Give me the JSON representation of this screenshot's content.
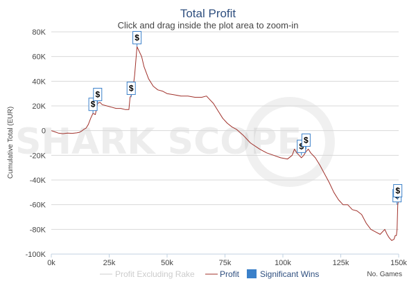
{
  "chart_data": {
    "type": "line",
    "title": "Total Profit",
    "subtitle": "Click and drag inside the plot area to zoom-in",
    "xlabel": "No. Games",
    "ylabel": "Cumulative Total (EUR)",
    "xlim": [
      0,
      150000
    ],
    "ylim": [
      -100000,
      80000
    ],
    "x_ticks": [
      0,
      25000,
      50000,
      75000,
      100000,
      125000,
      150000
    ],
    "x_tick_labels": [
      "0k",
      "25k",
      "50k",
      "75k",
      "100k",
      "125k",
      "150k"
    ],
    "y_ticks": [
      80000,
      60000,
      40000,
      20000,
      0,
      -20000,
      -40000,
      -60000,
      -80000,
      -100000
    ],
    "y_tick_labels": [
      "80K",
      "60K",
      "40K",
      "20K",
      "0",
      "-20K",
      "-40K",
      "-60K",
      "-80K",
      "-100K"
    ],
    "grid": true,
    "legend_position": "bottom",
    "watermark": "SHARK SCOPE",
    "series": [
      {
        "name": "Profit Excluding Rake",
        "color": "#cccccc",
        "visible": false,
        "x": [],
        "y": []
      },
      {
        "name": "Profit",
        "color": "#a0302a",
        "visible": true,
        "x": [
          0,
          1500,
          3000,
          5000,
          7000,
          9000,
          11000,
          12000,
          13000,
          14000,
          15000,
          16000,
          17000,
          18000,
          19000,
          20000,
          21000,
          22000,
          24000,
          26000,
          28000,
          30000,
          32000,
          33500,
          34000,
          35000,
          36000,
          37000,
          38000,
          39000,
          40000,
          42000,
          44000,
          46000,
          48000,
          50000,
          53000,
          56000,
          59000,
          62000,
          65000,
          67000,
          68000,
          70000,
          72000,
          74000,
          76000,
          78000,
          80000,
          83000,
          86000,
          90000,
          93000,
          96000,
          99000,
          102000,
          104000,
          105000,
          106000,
          107000,
          108000,
          109000,
          110000,
          111000,
          112000,
          114000,
          116000,
          118000,
          120000,
          122000,
          124000,
          126000,
          128000,
          130000,
          132000,
          134000,
          136000,
          138000,
          140000,
          142000,
          144000,
          145000,
          146000,
          147000,
          148000,
          148500,
          149000,
          149300,
          149600,
          150000
        ],
        "y": [
          0,
          -1000,
          -2000,
          -2500,
          -2000,
          -2200,
          -1800,
          -1500,
          -500,
          1000,
          2000,
          5000,
          10000,
          14000,
          13000,
          22000,
          23000,
          21000,
          20000,
          19000,
          18000,
          18000,
          17000,
          17000,
          27000,
          30000,
          45000,
          68000,
          64000,
          60000,
          52000,
          42000,
          36000,
          33000,
          32000,
          30000,
          29000,
          28000,
          28000,
          27000,
          27000,
          28000,
          26000,
          22000,
          16000,
          10000,
          6000,
          3000,
          1000,
          -4000,
          -10000,
          -15000,
          -18000,
          -20000,
          -22000,
          -23000,
          -20000,
          -15000,
          -18000,
          -20000,
          -22000,
          -20000,
          -17000,
          -15000,
          -18000,
          -22000,
          -28000,
          -35000,
          -42000,
          -50000,
          -56000,
          -60000,
          -60000,
          -64000,
          -65000,
          -68000,
          -75000,
          -80000,
          -82000,
          -84000,
          -80000,
          -84000,
          -87000,
          -89000,
          -88000,
          -85000,
          -85000,
          -80000,
          -60000,
          -56000
        ]
      }
    ],
    "significant_wins": {
      "name": "Significant Wins",
      "color": "#3a80c9",
      "symbol": "$",
      "points": [
        {
          "x": 18000,
          "y": 14000
        },
        {
          "x": 20000,
          "y": 22000
        },
        {
          "x": 34500,
          "y": 27000
        },
        {
          "x": 37000,
          "y": 68000
        },
        {
          "x": 108000,
          "y": -20000
        },
        {
          "x": 110000,
          "y": -15000
        },
        {
          "x": 149300,
          "y": -60000
        },
        {
          "x": 149600,
          "y": -56000
        }
      ]
    }
  }
}
